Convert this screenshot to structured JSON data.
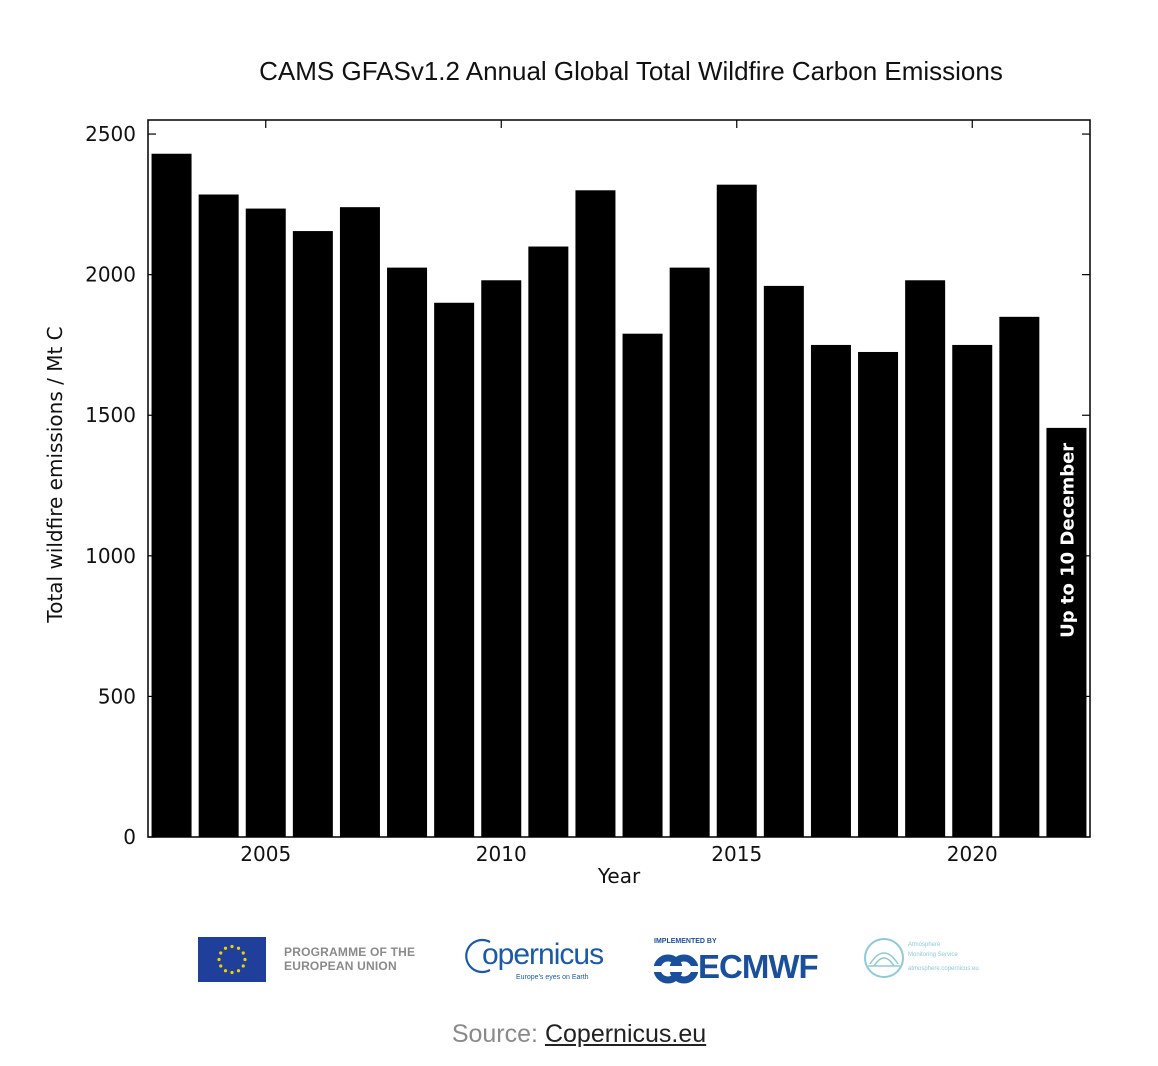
{
  "chart_data": {
    "type": "bar",
    "title": "CAMS GFASv1.2 Annual Global Total Wildfire Carbon Emissions",
    "xlabel": "Year",
    "ylabel": "Total wildfire emissions / Mt C",
    "categories": [
      "2003",
      "2004",
      "2005",
      "2006",
      "2007",
      "2008",
      "2009",
      "2010",
      "2011",
      "2012",
      "2013",
      "2014",
      "2015",
      "2016",
      "2017",
      "2018",
      "2019",
      "2020",
      "2021",
      "2022"
    ],
    "values": [
      2430,
      2285,
      2235,
      2155,
      2240,
      2025,
      1900,
      1980,
      2100,
      2300,
      1790,
      2025,
      2320,
      1960,
      1750,
      1725,
      1980,
      1750,
      1850,
      1455
    ],
    "ylim": [
      0,
      2550
    ],
    "xlim": [
      2002.5,
      2022.5
    ],
    "yticks": [
      "0",
      "500",
      "1000",
      "1500",
      "2000",
      "2500"
    ],
    "xticks": [
      "2005",
      "2010",
      "2015",
      "2020"
    ],
    "bar_color": "#000000",
    "annotation": {
      "year": "2022",
      "text": "Up to 10 December",
      "color": "#ffffff"
    }
  },
  "logos": {
    "eu_programme": "PROGRAMME OF THE EUROPEAN UNION",
    "copernicus": "opernicus",
    "copernicus_sub": "Europe's eyes on Earth",
    "ecmwf_implemented": "IMPLEMENTED BY",
    "ecmwf": "ECMWF",
    "cams_line1": "Atmosphere",
    "cams_line2": "Monitoring Service",
    "cams_line3": "atmosphere.copernicus.eu"
  },
  "source": {
    "label": "Source:",
    "link": "Copernicus.eu"
  }
}
